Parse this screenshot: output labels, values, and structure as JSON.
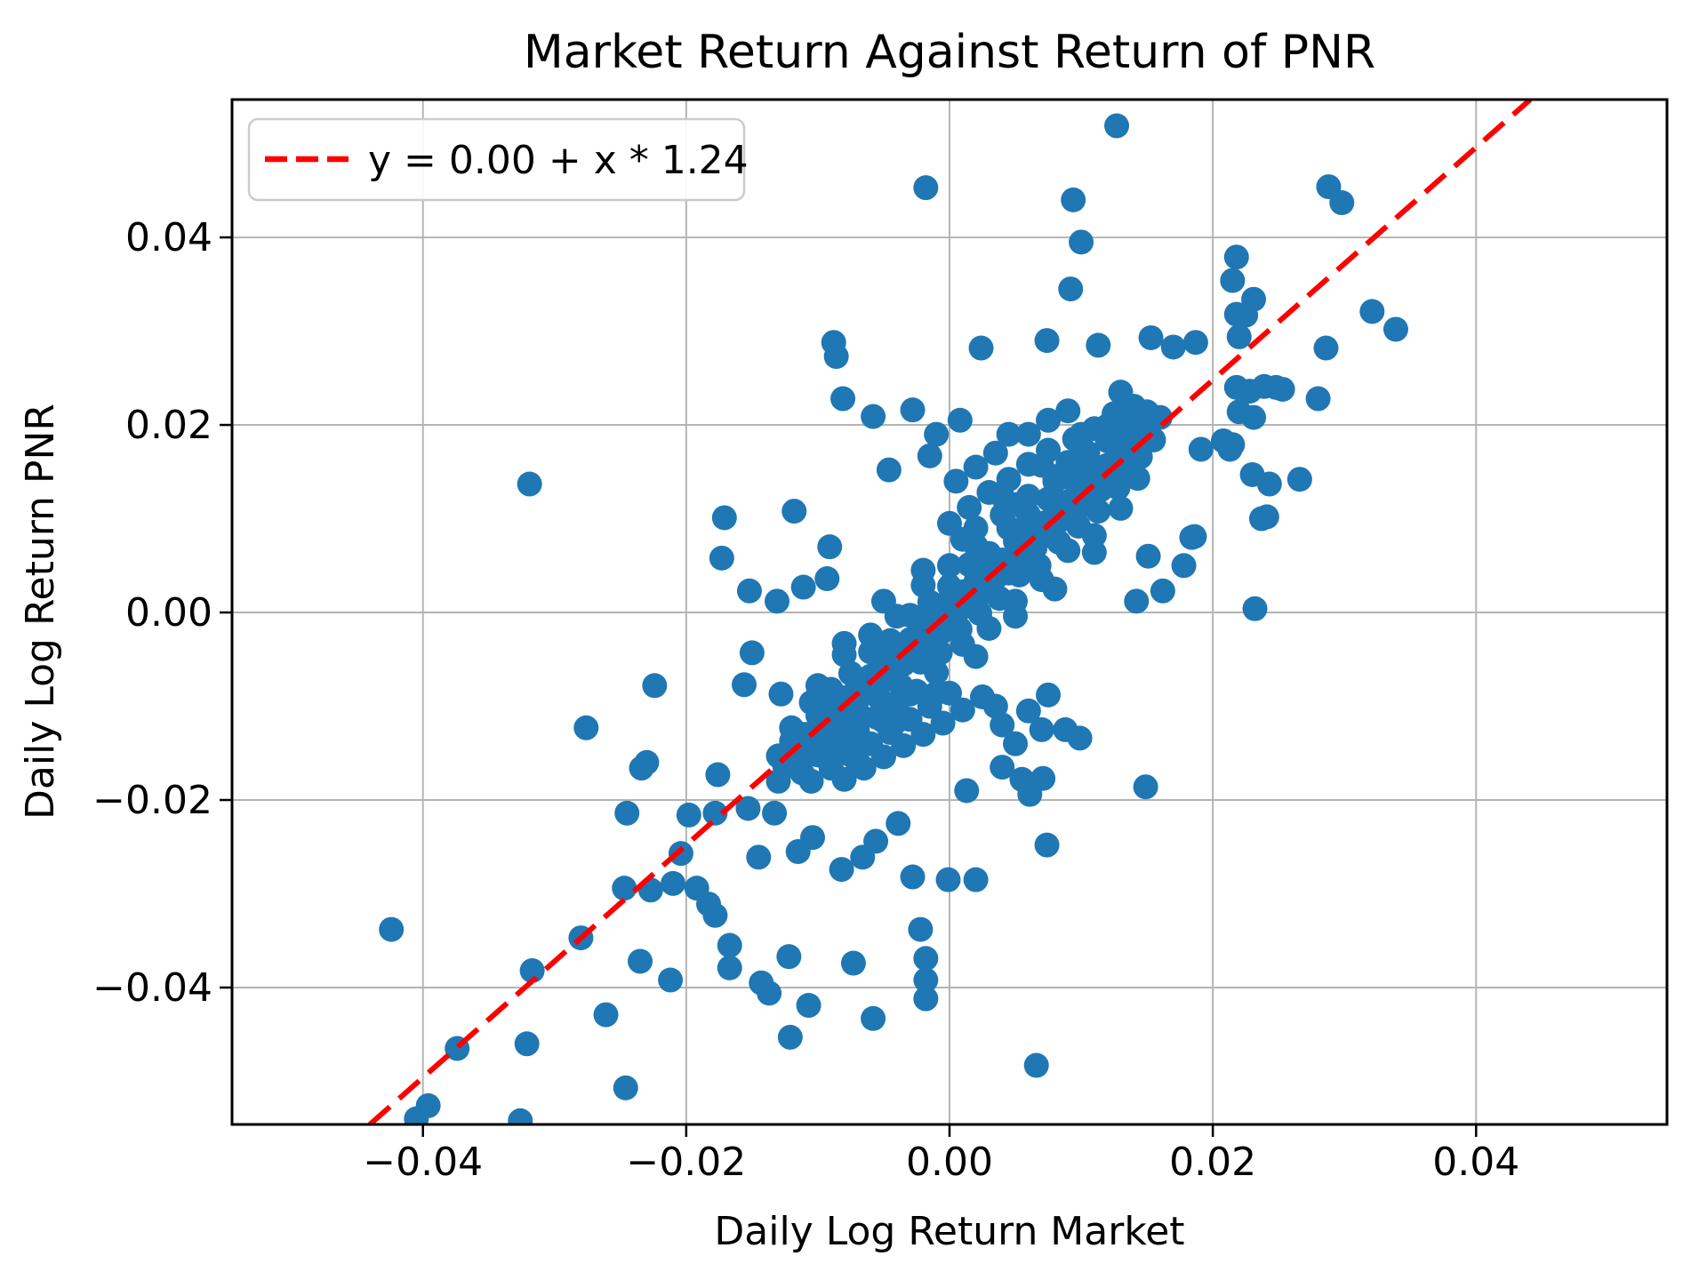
{
  "chart_data": {
    "type": "scatter",
    "title": "Market Return Against Return of PNR",
    "xlabel": "Daily Log Return Market",
    "ylabel": "Daily Log Return PNR",
    "xlim": [
      -0.0545,
      0.0545
    ],
    "ylim": [
      -0.0546,
      0.0547
    ],
    "grid": true,
    "xticks": {
      "values": [
        -0.04,
        -0.02,
        0.0,
        0.02,
        0.04
      ],
      "labels": [
        "−0.04",
        "−0.02",
        "0.00",
        "0.02",
        "0.04"
      ]
    },
    "yticks": {
      "values": [
        -0.04,
        -0.02,
        0.0,
        0.02,
        0.04
      ],
      "labels": [
        "−0.04",
        "−0.02",
        "0.00",
        "0.02",
        "0.04"
      ]
    },
    "legend": {
      "label": "y = 0.00 + x * 1.24",
      "position": "upper left"
    },
    "regression": {
      "intercept": 0.0,
      "slope": 1.24
    },
    "marker": {
      "radius": 14
    },
    "colors": {
      "marker": "#1f77b4",
      "line": "#ff0000",
      "grid": "#b4b4b4",
      "spine": "#000000",
      "text": "#000000",
      "legend_border": "#cccccc",
      "background": "#ffffff"
    },
    "points": [
      [
        0.0127,
        0.0519
      ],
      [
        -0.0018,
        0.0453
      ],
      [
        0.0094,
        0.044
      ],
      [
        0.01,
        0.0395
      ],
      [
        0.0092,
        0.0345
      ],
      [
        -0.0088,
        0.0288
      ],
      [
        0.0024,
        0.0282
      ],
      [
        0.0074,
        0.029
      ],
      [
        0.0113,
        0.0285
      ],
      [
        0.0153,
        0.0293
      ],
      [
        0.017,
        0.0283
      ],
      [
        0.0187,
        0.0288
      ],
      [
        0.0288,
        0.0454
      ],
      [
        0.0298,
        0.0437
      ],
      [
        0.0218,
        0.0379
      ],
      [
        0.0215,
        0.0354
      ],
      [
        0.0231,
        0.0334
      ],
      [
        0.0218,
        0.0318
      ],
      [
        0.0225,
        0.0317
      ],
      [
        0.022,
        0.0294
      ],
      [
        0.0321,
        0.0321
      ],
      [
        0.0339,
        0.0302
      ],
      [
        0.0286,
        0.0282
      ],
      [
        0.0218,
        0.024
      ],
      [
        0.0228,
        0.0236
      ],
      [
        0.0239,
        0.0241
      ],
      [
        0.0248,
        0.024
      ],
      [
        0.0253,
        0.0238
      ],
      [
        0.028,
        0.0228
      ],
      [
        0.022,
        0.0214
      ],
      [
        0.0231,
        0.0208
      ],
      [
        0.0215,
        0.0179
      ],
      [
        0.023,
        0.0147
      ],
      [
        0.0243,
        0.0137
      ],
      [
        0.0266,
        0.0142
      ],
      [
        0.0191,
        0.0174
      ],
      [
        0.0208,
        0.0183
      ],
      [
        0.0213,
        0.0174
      ],
      [
        0.0241,
        0.0102
      ],
      [
        0.0237,
        0.01
      ],
      [
        0.0232,
        0.0004
      ],
      [
        0.0184,
        0.008
      ],
      [
        0.0186,
        0.0081
      ],
      [
        0.0178,
        0.005
      ],
      [
        0.0151,
        0.006
      ],
      [
        0.0162,
        0.0023
      ],
      [
        0.0142,
        0.0012
      ],
      [
        0.0088,
        -0.0125
      ],
      [
        0.0099,
        -0.0134
      ],
      [
        0.0061,
        -0.0194
      ],
      [
        0.0071,
        -0.0177
      ],
      [
        0.0149,
        -0.0186
      ],
      [
        0.0074,
        -0.0248
      ],
      [
        0.0013,
        -0.019
      ],
      [
        0.0066,
        -0.0483
      ],
      [
        -0.0319,
        0.0137
      ],
      [
        -0.0171,
        0.0101
      ],
      [
        -0.0173,
        0.0058
      ],
      [
        -0.0224,
        -0.0078
      ],
      [
        -0.0276,
        -0.0123
      ],
      [
        -0.023,
        -0.016
      ],
      [
        -0.0086,
        0.0273
      ],
      [
        -0.0081,
        0.0228
      ],
      [
        -0.0058,
        0.0209
      ],
      [
        -0.0028,
        0.0216
      ],
      [
        -0.0046,
        0.0152
      ],
      [
        -0.0015,
        0.0167
      ],
      [
        -0.0118,
        0.0108
      ],
      [
        -0.0091,
        0.007
      ],
      [
        -0.0152,
        0.0023
      ],
      [
        -0.0131,
        0.0012
      ],
      [
        -0.0111,
        0.0027
      ],
      [
        -0.0093,
        0.0036
      ],
      [
        -0.015,
        -0.0043
      ],
      [
        -0.0156,
        -0.0077
      ],
      [
        -0.0128,
        -0.0087
      ],
      [
        -0.0234,
        -0.0166
      ],
      [
        -0.0176,
        -0.0173
      ],
      [
        -0.0245,
        -0.0214
      ],
      [
        -0.0198,
        -0.0216
      ],
      [
        -0.0178,
        -0.0214
      ],
      [
        -0.0204,
        -0.0257
      ],
      [
        -0.0247,
        -0.0294
      ],
      [
        -0.0227,
        -0.0296
      ],
      [
        -0.021,
        -0.0289
      ],
      [
        -0.0192,
        -0.0294
      ],
      [
        -0.0183,
        -0.0311
      ],
      [
        -0.0178,
        -0.0323
      ],
      [
        -0.0424,
        -0.0338
      ],
      [
        -0.028,
        -0.0347
      ],
      [
        -0.0317,
        -0.0382
      ],
      [
        -0.0235,
        -0.0372
      ],
      [
        -0.0212,
        -0.0392
      ],
      [
        -0.0261,
        -0.0429
      ],
      [
        -0.0374,
        -0.0465
      ],
      [
        -0.0321,
        -0.046
      ],
      [
        -0.0246,
        -0.0507
      ],
      [
        -0.0396,
        -0.0526
      ],
      [
        -0.0405,
        -0.054
      ],
      [
        -0.0326,
        -0.0542
      ],
      [
        -0.0153,
        -0.0209
      ],
      [
        -0.0133,
        -0.0214
      ],
      [
        -0.0145,
        -0.0261
      ],
      [
        -0.0115,
        -0.0255
      ],
      [
        -0.0104,
        -0.024
      ],
      [
        -0.0082,
        -0.0274
      ],
      [
        -0.0066,
        -0.0261
      ],
      [
        -0.0056,
        -0.0244
      ],
      [
        -0.0039,
        -0.0225
      ],
      [
        -0.0028,
        -0.0282
      ],
      [
        -0.0001,
        -0.0285
      ],
      [
        0.002,
        -0.0285
      ],
      [
        -0.0022,
        -0.0338
      ],
      [
        -0.0018,
        -0.0369
      ],
      [
        -0.0122,
        -0.0367
      ],
      [
        -0.0073,
        -0.0374
      ],
      [
        -0.0143,
        -0.0395
      ],
      [
        -0.0137,
        -0.0406
      ],
      [
        -0.0107,
        -0.0419
      ],
      [
        -0.0058,
        -0.0433
      ],
      [
        -0.0018,
        -0.0392
      ],
      [
        -0.0018,
        -0.0412
      ],
      [
        -0.0121,
        -0.0453
      ],
      [
        -0.0167,
        -0.0355
      ],
      [
        -0.0167,
        -0.0379
      ],
      [
        -0.013,
        -0.0153
      ],
      [
        -0.012,
        -0.0137
      ],
      [
        -0.011,
        -0.013
      ],
      [
        -0.01,
        -0.011
      ],
      [
        -0.009,
        -0.0102
      ],
      [
        -0.008,
        -0.0091
      ],
      [
        -0.007,
        -0.0075
      ],
      [
        -0.006,
        -0.0068
      ],
      [
        -0.005,
        -0.0048
      ],
      [
        -0.004,
        -0.004
      ],
      [
        -0.003,
        -0.0029
      ],
      [
        -0.002,
        -0.0013
      ],
      [
        -0.001,
        -0.0006
      ],
      [
        0.0,
        0.0014
      ],
      [
        0.001,
        0.0022
      ],
      [
        0.002,
        0.0033
      ],
      [
        0.003,
        0.0049
      ],
      [
        0.004,
        0.0056
      ],
      [
        0.005,
        0.0076
      ],
      [
        0.006,
        0.0084
      ],
      [
        0.007,
        0.0095
      ],
      [
        0.008,
        0.0111
      ],
      [
        0.009,
        0.0118
      ],
      [
        0.01,
        0.0138
      ],
      [
        0.011,
        0.0146
      ],
      [
        0.012,
        0.0157
      ],
      [
        0.013,
        0.0173
      ],
      [
        0.014,
        0.018
      ],
      [
        0.015,
        0.02
      ],
      [
        0.016,
        0.0208
      ],
      [
        -0.0125,
        -0.0165
      ],
      [
        -0.0115,
        -0.0149
      ],
      [
        -0.0105,
        -0.0144
      ],
      [
        -0.0095,
        -0.0126
      ],
      [
        -0.0085,
        -0.0117
      ],
      [
        -0.0075,
        -0.0103
      ],
      [
        -0.0065,
        -0.0087
      ],
      [
        -0.0055,
        -0.0082
      ],
      [
        -0.0045,
        -0.0064
      ],
      [
        -0.0035,
        -0.0055
      ],
      [
        -0.0025,
        -0.0041
      ],
      [
        -0.0015,
        -0.0025
      ],
      [
        -0.0005,
        -0.002
      ],
      [
        0.0005,
        -0.0002
      ],
      [
        0.0015,
        0.0007
      ],
      [
        0.0025,
        0.0021
      ],
      [
        0.0035,
        0.0037
      ],
      [
        0.0045,
        0.0042
      ],
      [
        0.0055,
        0.006
      ],
      [
        0.0065,
        0.0069
      ],
      [
        0.0075,
        0.0083
      ],
      [
        0.0085,
        0.0099
      ],
      [
        0.0095,
        0.0104
      ],
      [
        0.0105,
        0.0122
      ],
      [
        0.0115,
        0.0131
      ],
      [
        0.0125,
        0.0145
      ],
      [
        0.0135,
        0.0161
      ],
      [
        0.0145,
        0.0166
      ],
      [
        0.0155,
        0.0184
      ],
      [
        -0.012,
        -0.0123
      ],
      [
        -0.0105,
        -0.0096
      ],
      [
        -0.009,
        -0.0082
      ],
      [
        -0.0075,
        -0.0065
      ],
      [
        -0.006,
        -0.0042
      ],
      [
        -0.0045,
        -0.003
      ],
      [
        -0.003,
        -0.0003
      ],
      [
        -0.0015,
        0.0011
      ],
      [
        0.0,
        0.0028
      ],
      [
        0.0015,
        0.0051
      ],
      [
        0.003,
        0.0063
      ],
      [
        0.0045,
        0.009
      ],
      [
        0.006,
        0.0104
      ],
      [
        0.0075,
        0.0121
      ],
      [
        0.009,
        0.0144
      ],
      [
        0.0105,
        0.0156
      ],
      [
        0.012,
        0.0183
      ],
      [
        0.0135,
        0.0197
      ],
      [
        0.015,
        0.0214
      ],
      [
        -0.0112,
        -0.0171
      ],
      [
        -0.0097,
        -0.0146
      ],
      [
        -0.0082,
        -0.0136
      ],
      [
        -0.0067,
        -0.0111
      ],
      [
        -0.0052,
        -0.0094
      ],
      [
        -0.0037,
        -0.0078
      ],
      [
        -0.0022,
        -0.0053
      ],
      [
        -0.0007,
        -0.0043
      ],
      [
        0.0008,
        -0.0018
      ],
      [
        0.0023,
        -0.0001
      ],
      [
        0.0038,
        0.0015
      ],
      [
        0.0053,
        0.004
      ],
      [
        0.0068,
        0.005
      ],
      [
        0.0083,
        0.0075
      ],
      [
        0.0098,
        0.0092
      ],
      [
        0.0113,
        0.0108
      ],
      [
        0.0128,
        0.0133
      ],
      [
        0.0143,
        0.0143
      ],
      [
        -0.01,
        -0.0078
      ],
      [
        -0.008,
        -0.0045
      ],
      [
        -0.006,
        -0.0024
      ],
      [
        -0.004,
        -0.0004
      ],
      [
        -0.002,
        0.0029
      ],
      [
        0.0,
        0.005
      ],
      [
        0.002,
        0.0071
      ],
      [
        0.004,
        0.0104
      ],
      [
        0.006,
        0.0124
      ],
      [
        0.008,
        0.0145
      ],
      [
        0.01,
        0.0178
      ],
      [
        0.012,
        0.0199
      ],
      [
        0.014,
        0.022
      ],
      [
        -0.009,
        -0.0164
      ],
      [
        -0.007,
        -0.0133
      ],
      [
        -0.005,
        -0.0116
      ],
      [
        -0.003,
        -0.0087
      ],
      [
        -0.001,
        -0.0064
      ],
      [
        0.001,
        -0.0034
      ],
      [
        0.003,
        -0.0017
      ],
      [
        0.005,
        0.0012
      ],
      [
        0.007,
        0.0035
      ],
      [
        0.009,
        0.0066
      ],
      [
        0.011,
        0.0082
      ],
      [
        0.013,
        0.0111
      ],
      [
        -0.008,
        -0.0033
      ],
      [
        -0.005,
        0.0012
      ],
      [
        -0.002,
        0.0045
      ],
      [
        0.001,
        0.0078
      ],
      [
        0.004,
        0.0124
      ],
      [
        0.007,
        0.0157
      ],
      [
        0.01,
        0.019
      ],
      [
        0.013,
        0.0235
      ],
      [
        -0.007,
        -0.0159
      ],
      [
        -0.004,
        -0.0116
      ],
      [
        -0.001,
        -0.0086
      ],
      [
        0.002,
        -0.0047
      ],
      [
        0.005,
        -0.0004
      ],
      [
        0.008,
        0.0025
      ],
      [
        0.011,
        0.0064
      ],
      [
        0.0,
        0.0095
      ],
      [
        0.0015,
        0.0112
      ],
      [
        0.003,
        0.0128
      ],
      [
        0.0045,
        0.0142
      ],
      [
        0.006,
        0.0158
      ],
      [
        0.0075,
        0.0173
      ],
      [
        0.002,
        0.009
      ],
      [
        0.005,
        0.0115
      ],
      [
        0.008,
        0.014
      ],
      [
        0.0095,
        0.0185
      ],
      [
        0.011,
        0.0196
      ],
      [
        0.0125,
        0.0212
      ],
      [
        0.009,
        0.016
      ],
      [
        0.0105,
        0.017
      ],
      [
        0.012,
        0.0186
      ],
      [
        0.0135,
        0.0205
      ],
      [
        0.0005,
        0.014
      ],
      [
        0.002,
        0.0155
      ],
      [
        0.0035,
        0.017
      ],
      [
        0.006,
        0.019
      ],
      [
        0.0075,
        0.0205
      ],
      [
        0.009,
        0.0215
      ],
      [
        0.0045,
        0.019
      ],
      [
        -0.001,
        0.019
      ],
      [
        0.0008,
        0.0205
      ],
      [
        0.0125,
        0.015
      ],
      [
        -0.013,
        -0.018
      ],
      [
        -0.0115,
        -0.0166
      ],
      [
        -0.01,
        -0.0152
      ],
      [
        -0.0085,
        -0.014
      ],
      [
        -0.007,
        -0.0126
      ],
      [
        -0.0055,
        -0.0112
      ],
      [
        -0.004,
        -0.0098
      ],
      [
        -0.0025,
        -0.0084
      ],
      [
        -0.0105,
        -0.018
      ],
      [
        -0.009,
        -0.0166
      ],
      [
        -0.0075,
        -0.0152
      ],
      [
        -0.006,
        -0.014
      ],
      [
        -0.0045,
        -0.0128
      ],
      [
        -0.003,
        -0.0114
      ],
      [
        -0.0015,
        -0.01
      ],
      [
        0.0,
        -0.0086
      ],
      [
        -0.008,
        -0.0178
      ],
      [
        -0.0065,
        -0.0166
      ],
      [
        -0.005,
        -0.0154
      ],
      [
        -0.0035,
        -0.0142
      ],
      [
        -0.002,
        -0.013
      ],
      [
        -0.0005,
        -0.0118
      ],
      [
        0.001,
        -0.0104
      ],
      [
        0.0025,
        -0.009
      ],
      [
        0.004,
        -0.012
      ],
      [
        0.006,
        -0.0105
      ],
      [
        0.0075,
        -0.0088
      ],
      [
        0.005,
        -0.014
      ],
      [
        0.007,
        -0.0125
      ],
      [
        0.004,
        -0.0165
      ],
      [
        0.0055,
        -0.0178
      ],
      [
        0.0035,
        -0.01
      ]
    ]
  }
}
